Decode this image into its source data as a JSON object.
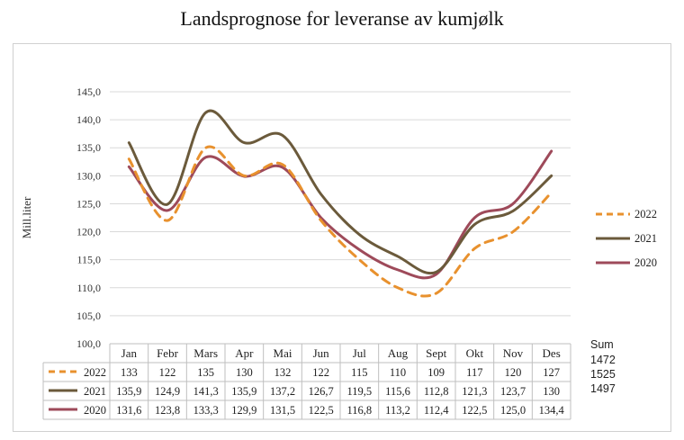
{
  "title": "Landsprognose for leveranse av kumjølk",
  "chart_data": {
    "type": "line",
    "title": "Landsprognose for leveranse av kumjølk",
    "ylabel": "Mill.liter",
    "xlabel": "",
    "ylim": [
      100,
      145
    ],
    "ytick_step": 5,
    "yticks": [
      "100,0",
      "105,0",
      "110,0",
      "115,0",
      "120,0",
      "125,0",
      "130,0",
      "135,0",
      "140,0",
      "145,0"
    ],
    "grid": true,
    "legend": "right",
    "categories": [
      "Jan",
      "Febr",
      "Mars",
      "Apr",
      "Mai",
      "Jun",
      "Jul",
      "Aug",
      "Sept",
      "Okt",
      "Nov",
      "Des"
    ],
    "series": [
      {
        "name": "2022",
        "color": "#E8912E",
        "dashed": true,
        "values": [
          133,
          122,
          135,
          130,
          132,
          122,
          115,
          110,
          109,
          117,
          120,
          127
        ],
        "labels": [
          "133",
          "122",
          "135",
          "130",
          "132",
          "122",
          "115",
          "110",
          "109",
          "117",
          "120",
          "127"
        ]
      },
      {
        "name": "2021",
        "color": "#6B5A3B",
        "dashed": false,
        "values": [
          135.9,
          124.9,
          141.3,
          135.9,
          137.2,
          126.7,
          119.5,
          115.6,
          112.8,
          121.3,
          123.7,
          130
        ],
        "labels": [
          "135,9",
          "124,9",
          "141,3",
          "135,9",
          "137,2",
          "126,7",
          "119,5",
          "115,6",
          "112,8",
          "121,3",
          "123,7",
          "130"
        ]
      },
      {
        "name": "2020",
        "color": "#9E4A5A",
        "dashed": false,
        "values": [
          131.6,
          123.8,
          133.3,
          129.9,
          131.5,
          122.5,
          116.8,
          113.2,
          112.4,
          122.5,
          125.0,
          134.4
        ],
        "labels": [
          "131,6",
          "123,8",
          "133,3",
          "129,9",
          "131,5",
          "122,5",
          "116,8",
          "113,2",
          "112,4",
          "122,5",
          "125,0",
          "134,4"
        ]
      }
    ],
    "sum": {
      "label": "Sum",
      "values": [
        "1472",
        "1525",
        "1497"
      ]
    }
  }
}
